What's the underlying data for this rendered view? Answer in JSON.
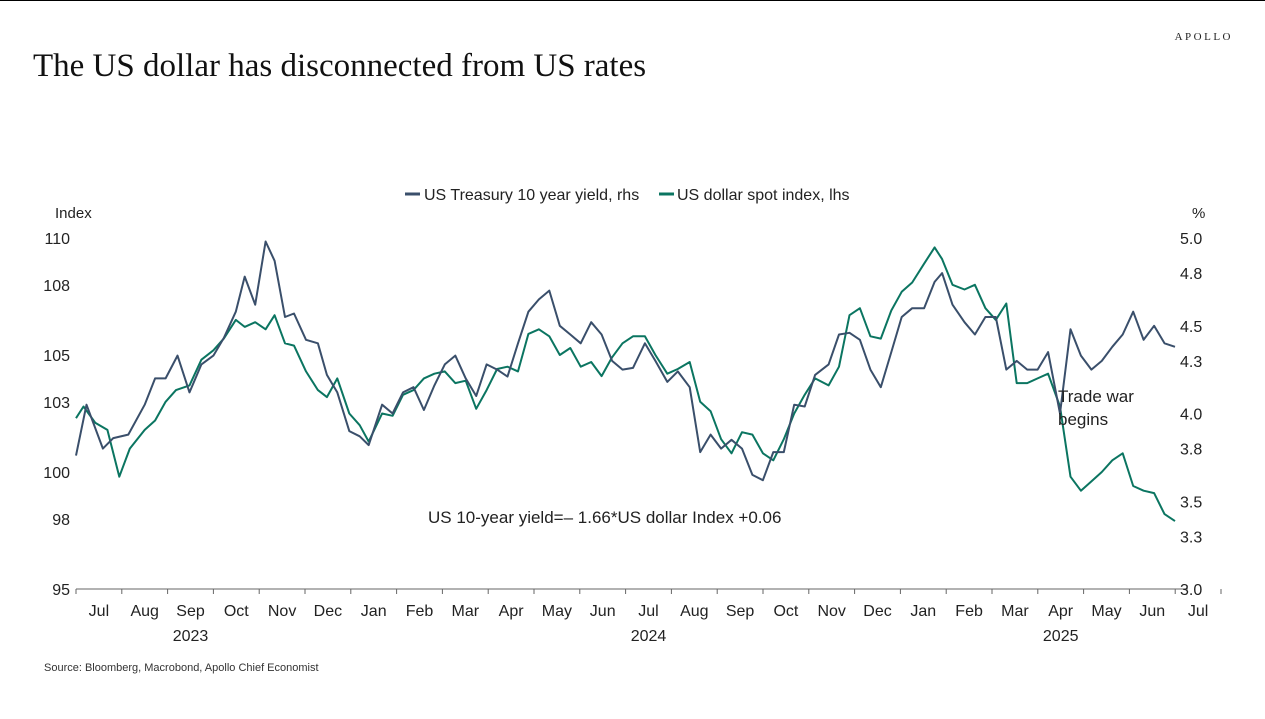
{
  "brand": "APOLLO",
  "title": "The US dollar has disconnected from US rates",
  "source": "Source: Bloomberg, Macrobond, Apollo Chief Economist",
  "colors": {
    "yield": "#3a4f6b",
    "dollar": "#0b7561"
  },
  "chart_data": {
    "type": "line",
    "title": "The US dollar has disconnected from US rates",
    "left_axis": {
      "label": "Index",
      "ticks": [
        95,
        98,
        100,
        103,
        105,
        108,
        110
      ],
      "range": [
        95,
        110
      ]
    },
    "right_axis": {
      "label": "%",
      "ticks": [
        3.0,
        3.3,
        3.5,
        3.8,
        4.0,
        4.3,
        4.5,
        4.8,
        5.0
      ],
      "range": [
        3.0,
        5.0
      ]
    },
    "x_months": [
      "Jul",
      "Aug",
      "Sep",
      "Oct",
      "Nov",
      "Dec",
      "Jan",
      "Feb",
      "Mar",
      "Apr",
      "May",
      "Jun",
      "Jul",
      "Aug",
      "Sep",
      "Oct",
      "Nov",
      "Dec",
      "Jan",
      "Feb",
      "Mar",
      "Apr",
      "May",
      "Jun",
      "Jul"
    ],
    "x_years": [
      {
        "label": "2023",
        "month_index": 2
      },
      {
        "label": "2024",
        "month_index": 12
      },
      {
        "label": "2025",
        "month_index": 21
      }
    ],
    "x_range": [
      "2023-06-15",
      "2025-06-20"
    ],
    "legend_position": "top-center",
    "grid": false,
    "series": [
      {
        "name": "US Treasury 10 year yield, rhs",
        "axis": "right",
        "color": "#3a4f6b",
        "points": [
          [
            "2023-06-15",
            3.76
          ],
          [
            "2023-06-22",
            4.05
          ],
          [
            "2023-07-03",
            3.8
          ],
          [
            "2023-07-10",
            3.86
          ],
          [
            "2023-07-20",
            3.88
          ],
          [
            "2023-07-31",
            4.05
          ],
          [
            "2023-08-07",
            4.2
          ],
          [
            "2023-08-14",
            4.2
          ],
          [
            "2023-08-22",
            4.33
          ],
          [
            "2023-08-30",
            4.12
          ],
          [
            "2023-09-07",
            4.28
          ],
          [
            "2023-09-15",
            4.33
          ],
          [
            "2023-09-22",
            4.43
          ],
          [
            "2023-09-30",
            4.58
          ],
          [
            "2023-10-06",
            4.78
          ],
          [
            "2023-10-13",
            4.62
          ],
          [
            "2023-10-20",
            4.98
          ],
          [
            "2023-10-26",
            4.87
          ],
          [
            "2023-11-02",
            4.55
          ],
          [
            "2023-11-08",
            4.57
          ],
          [
            "2023-11-16",
            4.42
          ],
          [
            "2023-11-24",
            4.4
          ],
          [
            "2023-11-30",
            4.22
          ],
          [
            "2023-12-07",
            4.12
          ],
          [
            "2023-12-15",
            3.9
          ],
          [
            "2023-12-22",
            3.87
          ],
          [
            "2023-12-28",
            3.82
          ],
          [
            "2024-01-06",
            4.05
          ],
          [
            "2024-01-13",
            4.0
          ],
          [
            "2024-01-20",
            4.12
          ],
          [
            "2024-01-27",
            4.15
          ],
          [
            "2024-02-03",
            4.02
          ],
          [
            "2024-02-10",
            4.16
          ],
          [
            "2024-02-17",
            4.28
          ],
          [
            "2024-02-24",
            4.33
          ],
          [
            "2024-03-02",
            4.2
          ],
          [
            "2024-03-09",
            4.1
          ],
          [
            "2024-03-16",
            4.28
          ],
          [
            "2024-03-23",
            4.25
          ],
          [
            "2024-03-30",
            4.21
          ],
          [
            "2024-04-06",
            4.4
          ],
          [
            "2024-04-13",
            4.58
          ],
          [
            "2024-04-20",
            4.65
          ],
          [
            "2024-04-27",
            4.7
          ],
          [
            "2024-05-04",
            4.5
          ],
          [
            "2024-05-11",
            4.45
          ],
          [
            "2024-05-18",
            4.4
          ],
          [
            "2024-05-25",
            4.52
          ],
          [
            "2024-06-01",
            4.45
          ],
          [
            "2024-06-08",
            4.3
          ],
          [
            "2024-06-15",
            4.25
          ],
          [
            "2024-06-22",
            4.26
          ],
          [
            "2024-06-30",
            4.4
          ],
          [
            "2024-07-07",
            4.3
          ],
          [
            "2024-07-15",
            4.18
          ],
          [
            "2024-07-22",
            4.24
          ],
          [
            "2024-07-30",
            4.15
          ],
          [
            "2024-08-06",
            3.78
          ],
          [
            "2024-08-13",
            3.88
          ],
          [
            "2024-08-20",
            3.8
          ],
          [
            "2024-08-27",
            3.85
          ],
          [
            "2024-09-03",
            3.8
          ],
          [
            "2024-09-10",
            3.65
          ],
          [
            "2024-09-17",
            3.62
          ],
          [
            "2024-09-24",
            3.78
          ],
          [
            "2024-10-01",
            3.78
          ],
          [
            "2024-10-08",
            4.05
          ],
          [
            "2024-10-15",
            4.04
          ],
          [
            "2024-10-22",
            4.22
          ],
          [
            "2024-10-31",
            4.28
          ],
          [
            "2024-11-07",
            4.45
          ],
          [
            "2024-11-14",
            4.46
          ],
          [
            "2024-11-21",
            4.42
          ],
          [
            "2024-11-28",
            4.25
          ],
          [
            "2024-12-05",
            4.15
          ],
          [
            "2024-12-12",
            4.35
          ],
          [
            "2024-12-19",
            4.55
          ],
          [
            "2024-12-26",
            4.6
          ],
          [
            "2025-01-03",
            4.6
          ],
          [
            "2025-01-10",
            4.75
          ],
          [
            "2025-01-15",
            4.8
          ],
          [
            "2025-01-22",
            4.62
          ],
          [
            "2025-01-30",
            4.52
          ],
          [
            "2025-02-06",
            4.45
          ],
          [
            "2025-02-13",
            4.55
          ],
          [
            "2025-02-20",
            4.55
          ],
          [
            "2025-02-27",
            4.25
          ],
          [
            "2025-03-06",
            4.3
          ],
          [
            "2025-03-13",
            4.25
          ],
          [
            "2025-03-20",
            4.25
          ],
          [
            "2025-03-27",
            4.35
          ],
          [
            "2025-04-04",
            4.0
          ],
          [
            "2025-04-11",
            4.48
          ],
          [
            "2025-04-18",
            4.33
          ],
          [
            "2025-04-25",
            4.25
          ],
          [
            "2025-05-02",
            4.3
          ],
          [
            "2025-05-09",
            4.38
          ],
          [
            "2025-05-16",
            4.45
          ],
          [
            "2025-05-23",
            4.58
          ],
          [
            "2025-05-30",
            4.42
          ],
          [
            "2025-06-06",
            4.5
          ],
          [
            "2025-06-13",
            4.4
          ],
          [
            "2025-06-20",
            4.38
          ]
        ]
      },
      {
        "name": "US dollar spot index, lhs",
        "axis": "left",
        "color": "#0b7561",
        "points": [
          [
            "2023-06-15",
            102.3
          ],
          [
            "2023-06-20",
            102.8
          ],
          [
            "2023-06-28",
            102.1
          ],
          [
            "2023-07-06",
            101.8
          ],
          [
            "2023-07-14",
            99.8
          ],
          [
            "2023-07-21",
            101.0
          ],
          [
            "2023-07-31",
            101.8
          ],
          [
            "2023-08-07",
            102.2
          ],
          [
            "2023-08-14",
            103.0
          ],
          [
            "2023-08-21",
            103.5
          ],
          [
            "2023-08-30",
            103.7
          ],
          [
            "2023-09-07",
            104.8
          ],
          [
            "2023-09-15",
            105.2
          ],
          [
            "2023-09-22",
            105.7
          ],
          [
            "2023-09-30",
            106.5
          ],
          [
            "2023-10-06",
            106.2
          ],
          [
            "2023-10-13",
            106.4
          ],
          [
            "2023-10-20",
            106.1
          ],
          [
            "2023-10-26",
            106.7
          ],
          [
            "2023-11-02",
            105.5
          ],
          [
            "2023-11-08",
            105.4
          ],
          [
            "2023-11-16",
            104.3
          ],
          [
            "2023-11-24",
            103.5
          ],
          [
            "2023-11-30",
            103.2
          ],
          [
            "2023-12-07",
            104.0
          ],
          [
            "2023-12-15",
            102.5
          ],
          [
            "2023-12-22",
            102.0
          ],
          [
            "2023-12-28",
            101.3
          ],
          [
            "2024-01-06",
            102.5
          ],
          [
            "2024-01-13",
            102.4
          ],
          [
            "2024-01-20",
            103.3
          ],
          [
            "2024-01-27",
            103.5
          ],
          [
            "2024-02-03",
            104.0
          ],
          [
            "2024-02-10",
            104.2
          ],
          [
            "2024-02-17",
            104.3
          ],
          [
            "2024-02-24",
            103.8
          ],
          [
            "2024-03-02",
            103.9
          ],
          [
            "2024-03-09",
            102.7
          ],
          [
            "2024-03-16",
            103.5
          ],
          [
            "2024-03-23",
            104.4
          ],
          [
            "2024-03-30",
            104.5
          ],
          [
            "2024-04-06",
            104.3
          ],
          [
            "2024-04-13",
            105.9
          ],
          [
            "2024-04-20",
            106.1
          ],
          [
            "2024-04-27",
            105.8
          ],
          [
            "2024-05-04",
            105.0
          ],
          [
            "2024-05-11",
            105.3
          ],
          [
            "2024-05-18",
            104.5
          ],
          [
            "2024-05-25",
            104.7
          ],
          [
            "2024-06-01",
            104.1
          ],
          [
            "2024-06-08",
            104.9
          ],
          [
            "2024-06-15",
            105.5
          ],
          [
            "2024-06-22",
            105.8
          ],
          [
            "2024-06-30",
            105.8
          ],
          [
            "2024-07-07",
            105.0
          ],
          [
            "2024-07-15",
            104.2
          ],
          [
            "2024-07-22",
            104.4
          ],
          [
            "2024-07-30",
            104.7
          ],
          [
            "2024-08-06",
            103.0
          ],
          [
            "2024-08-13",
            102.6
          ],
          [
            "2024-08-20",
            101.4
          ],
          [
            "2024-08-27",
            100.8
          ],
          [
            "2024-09-03",
            101.7
          ],
          [
            "2024-09-10",
            101.6
          ],
          [
            "2024-09-17",
            100.8
          ],
          [
            "2024-09-24",
            100.5
          ],
          [
            "2024-10-01",
            101.4
          ],
          [
            "2024-10-08",
            102.5
          ],
          [
            "2024-10-15",
            103.3
          ],
          [
            "2024-10-22",
            104.0
          ],
          [
            "2024-10-31",
            103.7
          ],
          [
            "2024-11-07",
            104.5
          ],
          [
            "2024-11-14",
            106.7
          ],
          [
            "2024-11-21",
            107.0
          ],
          [
            "2024-11-28",
            105.8
          ],
          [
            "2024-12-05",
            105.7
          ],
          [
            "2024-12-12",
            106.9
          ],
          [
            "2024-12-19",
            107.7
          ],
          [
            "2024-12-26",
            108.1
          ],
          [
            "2025-01-03",
            108.9
          ],
          [
            "2025-01-10",
            109.6
          ],
          [
            "2025-01-15",
            109.1
          ],
          [
            "2025-01-22",
            108.0
          ],
          [
            "2025-01-30",
            107.8
          ],
          [
            "2025-02-06",
            108.0
          ],
          [
            "2025-02-13",
            107.0
          ],
          [
            "2025-02-20",
            106.5
          ],
          [
            "2025-02-27",
            107.2
          ],
          [
            "2025-03-06",
            103.8
          ],
          [
            "2025-03-13",
            103.8
          ],
          [
            "2025-03-20",
            104.0
          ],
          [
            "2025-03-27",
            104.2
          ],
          [
            "2025-04-04",
            102.8
          ],
          [
            "2025-04-11",
            99.8
          ],
          [
            "2025-04-18",
            99.2
          ],
          [
            "2025-04-25",
            99.6
          ],
          [
            "2025-05-02",
            100.0
          ],
          [
            "2025-05-09",
            100.5
          ],
          [
            "2025-05-16",
            100.8
          ],
          [
            "2025-05-23",
            99.4
          ],
          [
            "2025-05-30",
            99.2
          ],
          [
            "2025-06-06",
            99.1
          ],
          [
            "2025-06-13",
            98.2
          ],
          [
            "2025-06-20",
            97.9
          ]
        ]
      }
    ],
    "annotations": [
      {
        "text": "Trade war\nbegins"
      },
      {
        "text": "US 10-year yield=– 1.66*US dollar Index +0.06"
      }
    ]
  }
}
